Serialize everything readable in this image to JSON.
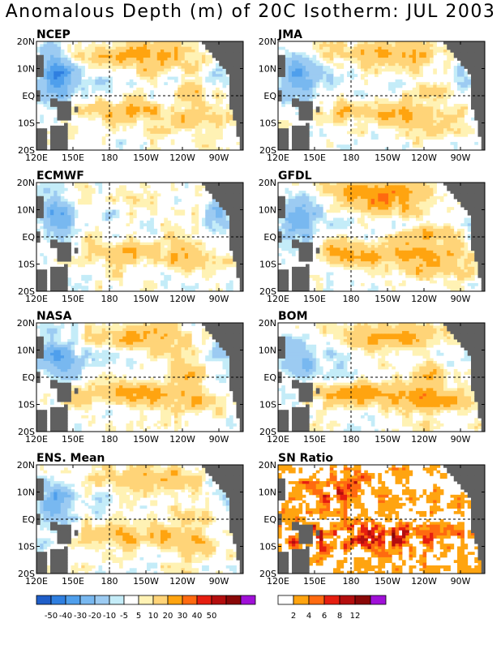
{
  "title": "Anomalous Depth (m) of 20C Isotherm: JUL 2003",
  "axes": {
    "lon_ticks": [
      "120E",
      "150E",
      "180",
      "150W",
      "120W",
      "90W"
    ],
    "lat_ticks": [
      "20N",
      "10N",
      "EQ",
      "10S",
      "20S"
    ],
    "lon_range": [
      120,
      290
    ],
    "lat_range": [
      -20,
      20
    ],
    "reference_lines": {
      "lon": 180,
      "lat": 0
    }
  },
  "colors": {
    "land": "#606060",
    "depth_scale": [
      "#1f5ec8",
      "#2f7fe0",
      "#4f9fec",
      "#78b8f0",
      "#9ccbf2",
      "#c4ecf8",
      "#ffffff",
      "#fff2b4",
      "#ffd478",
      "#ffa410",
      "#ff6a10",
      "#e61e10",
      "#b40e0e",
      "#8a0808",
      "#a010d8"
    ],
    "sn_scale": [
      "#ffffff",
      "#ffa410",
      "#ff6a10",
      "#e61e10",
      "#b40e0e",
      "#8a0808",
      "#a010d8"
    ]
  },
  "legends": {
    "depth": {
      "ticks": [
        "-50",
        "-40",
        "-30",
        "-20",
        "-10",
        "-5",
        "5",
        "10",
        "20",
        "30",
        "40",
        "50"
      ]
    },
    "sn": {
      "ticks": [
        "2",
        "4",
        "6",
        "8",
        "12"
      ]
    }
  },
  "chart_data": [
    {
      "type": "heatmap",
      "name": "NCEP",
      "variable": "20C isotherm depth anomaly (m)",
      "fields": {
        "west_shallow": -35,
        "east_north_deep": 25,
        "south_deep": 15,
        "east_equator_shallow": -10
      }
    },
    {
      "type": "heatmap",
      "name": "JMA",
      "variable": "20C isotherm depth anomaly (m)",
      "fields": {
        "west_shallow": -30,
        "east_north_deep": 22,
        "south_deep": 18,
        "east_equator_shallow": -8
      }
    },
    {
      "type": "heatmap",
      "name": "ECMWF",
      "variable": "20C isotherm depth anomaly (m)",
      "fields": {
        "west_shallow": -28,
        "east_north_deep": 6,
        "south_deep": 16,
        "east_equator_shallow": -18
      }
    },
    {
      "type": "heatmap",
      "name": "GFDL",
      "variable": "20C isotherm depth anomaly (m)",
      "fields": {
        "west_shallow": -30,
        "east_north_deep": 28,
        "south_deep": 22,
        "east_equator_shallow": -5
      }
    },
    {
      "type": "heatmap",
      "name": "NASA",
      "variable": "20C isotherm depth anomaly (m)",
      "fields": {
        "west_shallow": -32,
        "east_north_deep": 24,
        "south_deep": 18,
        "east_equator_shallow": -10
      }
    },
    {
      "type": "heatmap",
      "name": "BOM",
      "variable": "20C isotherm depth anomaly (m)",
      "fields": {
        "west_shallow": -25,
        "east_north_deep": 22,
        "south_deep": 24,
        "east_equator_shallow": -6
      }
    },
    {
      "type": "heatmap",
      "name": "ENS. Mean",
      "variable": "20C isotherm depth anomaly (m)",
      "fields": {
        "west_shallow": -26,
        "east_north_deep": 20,
        "south_deep": 18,
        "east_equator_shallow": -8
      }
    },
    {
      "type": "heatmap",
      "name": "SN Ratio",
      "variable": "signal-to-noise ratio",
      "fields": {
        "south_high": 9,
        "north_west_high": 6,
        "background": 1.5
      }
    }
  ]
}
